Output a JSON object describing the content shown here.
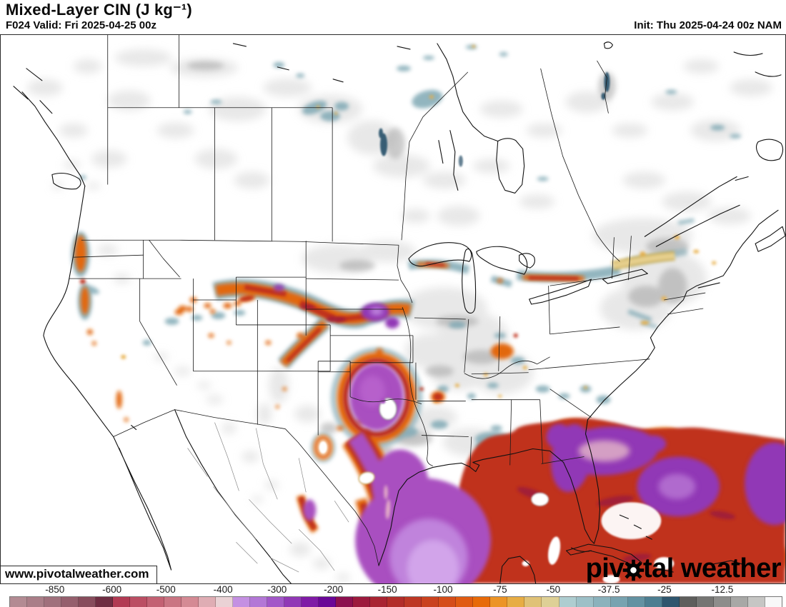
{
  "header": {
    "title": "Mixed-Layer CIN (J kg⁻¹)",
    "valid": "F024 Valid: Fri 2025-04-25 00z",
    "init": "Init: Thu 2025-04-24 00z NAM"
  },
  "watermark": {
    "url": "www.pivotalweather.com",
    "brand_left": "piv",
    "brand_right": "tal weather",
    "gear_icon": "gear"
  },
  "colorbar": {
    "units": "J kg⁻¹",
    "ticks": [
      {
        "label": "-850",
        "pct": 5.9
      },
      {
        "label": "-600",
        "pct": 13.3
      },
      {
        "label": "-500",
        "pct": 20.3
      },
      {
        "label": "-400",
        "pct": 27.7
      },
      {
        "label": "-300",
        "pct": 34.7
      },
      {
        "label": "-200",
        "pct": 42.0
      },
      {
        "label": "-150",
        "pct": 49.0
      },
      {
        "label": "-100",
        "pct": 56.2
      },
      {
        "label": "-75",
        "pct": 63.6
      },
      {
        "label": "-50",
        "pct": 70.5
      },
      {
        "label": "-37.5",
        "pct": 77.7
      },
      {
        "label": "-25",
        "pct": 84.9
      },
      {
        "label": "-12.5",
        "pct": 92.4
      }
    ],
    "cells": [
      "#b38b93",
      "#aa7e88",
      "#a0707c",
      "#955f6d",
      "#874c5c",
      "#6f2d42",
      "#b23a53",
      "#bb4e63",
      "#c36173",
      "#ca7583",
      "#d48a94",
      "#dfadb4",
      "#ead2d5",
      "#c490e2",
      "#b377d6",
      "#a257c8",
      "#9138b6",
      "#7f1ba6",
      "#6a0797",
      "#8c104f",
      "#9c1a3d",
      "#a82432",
      "#b22d2a",
      "#bd3725",
      "#c9421f",
      "#d54d1a",
      "#e05b12",
      "#e76a09",
      "#ec9426",
      "#e7ad44",
      "#e0c277",
      "#ded096",
      "#aecdd0",
      "#9dc0c7",
      "#8bb2bc",
      "#78a3b0",
      "#6392a2",
      "#4d7e91",
      "#2f566e",
      "#5e5e5c",
      "#757573",
      "#8d8d8b",
      "#a8a8a6",
      "#c6c6c4",
      "#f8f8f8"
    ],
    "key_colors": {
      "strong_cin_purple": "#9138b6",
      "moderate_cin_red": "#c0321f",
      "weak_cin_blue": "#7fa8b4",
      "minimal_cin_gray": "#d9d9d9"
    }
  }
}
